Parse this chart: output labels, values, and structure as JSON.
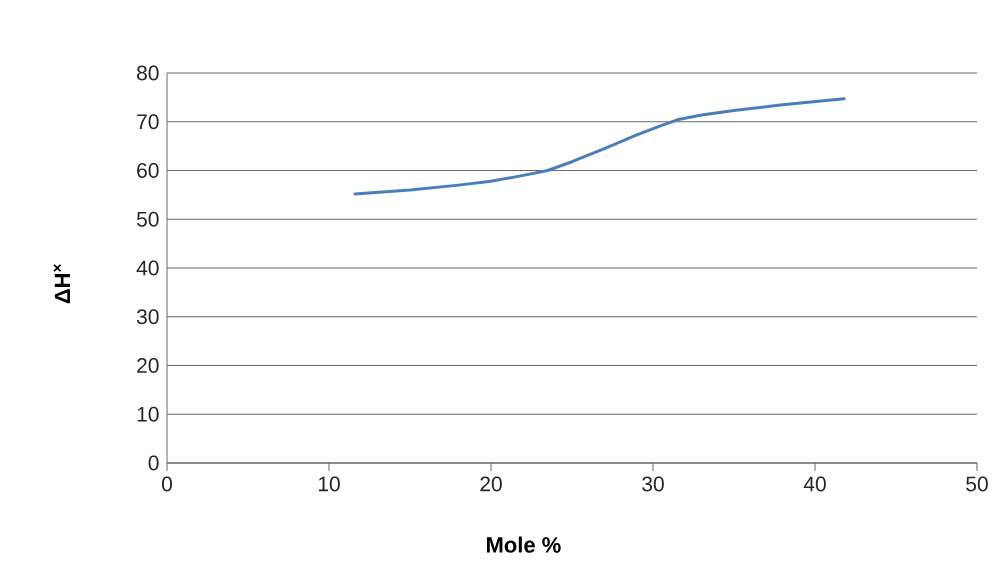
{
  "chart_data": {
    "type": "line",
    "xlabel": "Mole %",
    "ylabel": "ΔH$^{×}$",
    "x": [
      11.6,
      15,
      18,
      20,
      22,
      23.5,
      25,
      27,
      29,
      30.5,
      31.5,
      33,
      35,
      38,
      41.8
    ],
    "series": [
      {
        "color": "#4a7ebb",
        "values": [
          55.2,
          56,
          57,
          57.8,
          59,
          60,
          61.8,
          64.5,
          67.3,
          69.2,
          70.4,
          71.4,
          72.3,
          73.5,
          74.7
        ]
      }
    ],
    "xlim": [
      0,
      50
    ],
    "ylim": [
      0,
      80
    ],
    "xticks": [
      0,
      10,
      20,
      30,
      40,
      50
    ],
    "yticks": [
      0,
      10,
      20,
      30,
      40,
      50,
      60,
      70,
      80
    ],
    "grid": "y",
    "marker": "none",
    "line_style": "solid"
  }
}
